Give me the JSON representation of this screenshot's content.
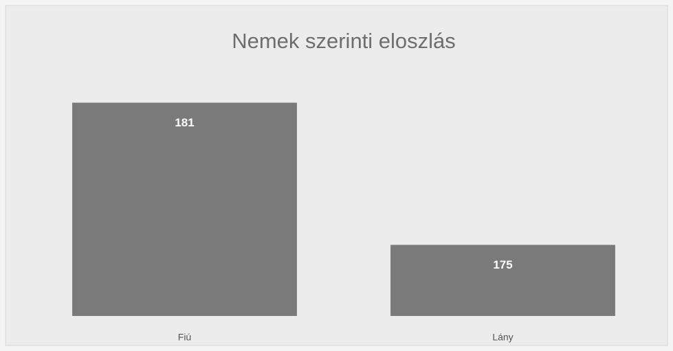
{
  "chart_data": {
    "type": "bar",
    "title": "Nemek szerinti eloszlás",
    "categories": [
      "Fiú",
      "Lány"
    ],
    "values": [
      181,
      175
    ],
    "color": "#7a7a7a",
    "ylim": [
      172,
      182
    ]
  }
}
